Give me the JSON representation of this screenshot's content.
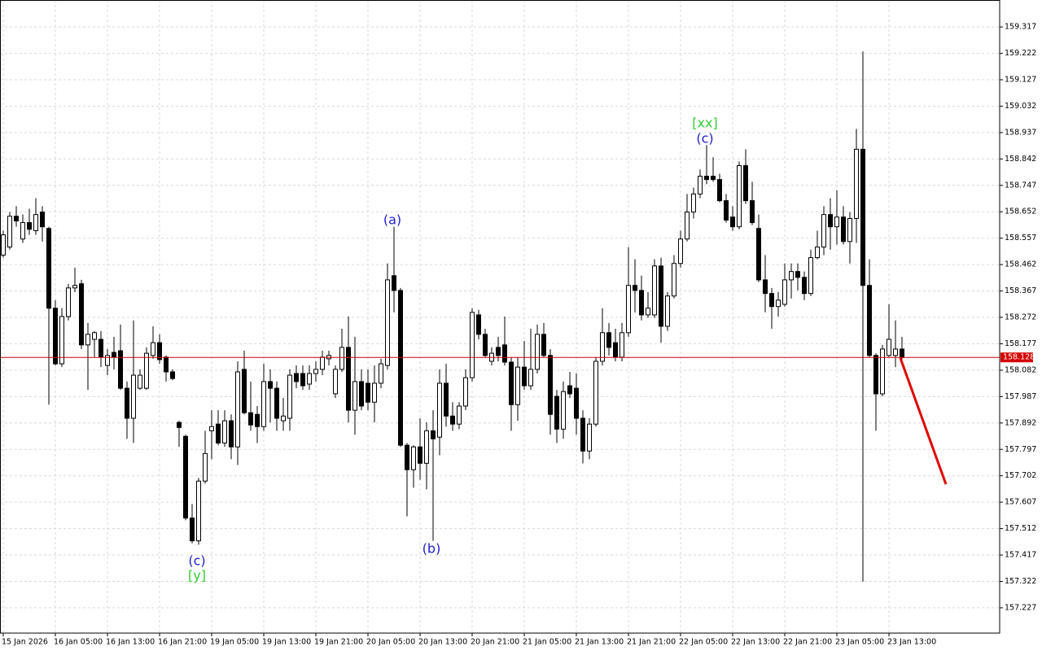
{
  "chart_data": {
    "type": "candlestick",
    "categories": [
      "15 Jan 2026",
      null,
      null,
      null,
      null,
      null,
      null,
      null,
      "16 Jan 05:00",
      null,
      null,
      null,
      null,
      null,
      null,
      null,
      "16 Jan 13:00",
      null,
      null,
      null,
      null,
      null,
      null,
      null,
      "16 Jan 21:00",
      null,
      null,
      null,
      null,
      null,
      null,
      null,
      "19 Jan 05:00",
      null,
      null,
      null,
      null,
      null,
      null,
      null,
      "19 Jan 13:00",
      null,
      null,
      null,
      null,
      null,
      null,
      null,
      "19 Jan 21:00",
      null,
      null,
      null,
      null,
      null,
      null,
      null,
      "20 Jan 05:00",
      null,
      null,
      null,
      null,
      null,
      null,
      null,
      "20 Jan 13:00",
      null,
      null,
      null,
      null,
      null,
      null,
      null,
      "20 Jan 21:00",
      null,
      null,
      null,
      null,
      null,
      null,
      null,
      "21 Jan 05:00",
      null,
      null,
      null,
      null,
      null,
      null,
      null,
      "21 Jan 13:00",
      null,
      null,
      null,
      null,
      null,
      null,
      null,
      "21 Jan 21:00",
      null,
      null,
      null,
      null,
      null,
      null,
      null,
      "22 Jan 05:00",
      null,
      null,
      null,
      null,
      null,
      null,
      null,
      "22 Jan 13:00",
      null,
      null,
      null,
      null,
      null,
      null,
      null,
      "22 Jan 21:00",
      null,
      null,
      null,
      null,
      null,
      null,
      null,
      "23 Jan 05:00",
      null,
      null,
      null,
      null,
      null,
      null,
      null,
      "23 Jan 13:00",
      null,
      null
    ],
    "open": [
      158.496,
      158.525,
      158.636,
      158.554,
      158.613,
      158.584,
      158.651,
      158.592,
      158.305,
      158.105,
      158.275,
      158.378,
      158.393,
      158.173,
      158.193,
      158.193,
      158.099,
      158.146,
      158.152,
      158.017,
      157.909,
      158.017,
      158.017,
      158.135,
      158.181,
      158.129,
      158.076,
      157.894,
      157.844,
      157.55,
      157.468,
      157.683,
      157.864,
      157.888,
      157.82,
      157.9,
      157.806,
      158.085,
      157.929,
      157.923,
      157.879,
      158.041,
      158.017,
      157.9,
      157.909,
      158.07,
      158.07,
      158.032,
      158.07,
      158.085,
      158.123,
      157.997,
      158.085,
      158.164,
      157.938,
      158.041,
      158.035,
      157.967,
      158.035,
      158.099,
      158.422,
      158.369,
      157.812,
      157.724,
      157.806,
      157.747,
      157.864,
      157.841,
      158.035,
      157.917,
      157.888,
      157.953,
      158.055,
      158.281,
      158.211,
      158.114,
      158.164,
      158.173,
      158.111,
      157.958,
      158.093,
      158.026,
      158.085,
      158.211,
      158.135,
      157.988,
      157.87,
      158.026,
      158.017,
      157.909,
      157.791,
      157.888,
      158.114,
      158.217,
      158.181,
      158.129,
      158.217,
      158.387,
      158.369,
      158.281,
      158.281,
      158.457,
      158.24,
      158.349,
      158.466,
      158.554,
      158.651,
      158.716,
      158.78,
      158.78,
      158.768,
      158.692,
      158.633,
      158.598,
      158.818,
      158.692,
      158.592,
      158.407,
      158.358,
      158.311,
      158.319,
      158.407,
      158.437,
      158.416,
      158.358,
      158.487,
      158.525,
      158.642,
      158.598,
      158.633,
      158.545,
      158.628,
      158.877,
      158.387,
      158.135,
      157.997,
      158.135,
      158.135,
      158.158
    ],
    "high": [
      158.584,
      158.651,
      158.672,
      158.642,
      158.663,
      158.701,
      158.672,
      158.598,
      158.334,
      158.305,
      158.393,
      158.451,
      158.407,
      158.252,
      158.223,
      158.223,
      158.158,
      158.202,
      158.246,
      158.041,
      158.261,
      158.085,
      158.164,
      158.24,
      158.211,
      158.135,
      158.085,
      157.9,
      157.85,
      157.6,
      157.694,
      157.864,
      157.938,
      157.938,
      157.938,
      157.923,
      158.114,
      158.152,
      158.041,
      157.953,
      158.105,
      158.085,
      158.041,
      157.982,
      158.085,
      158.099,
      158.099,
      158.099,
      158.114,
      158.152,
      158.152,
      158.099,
      158.231,
      158.275,
      158.202,
      158.085,
      158.085,
      158.099,
      158.123,
      158.466,
      158.598,
      158.378,
      157.82,
      157.812,
      157.909,
      157.894,
      157.938,
      158.085,
      158.105,
      157.967,
      157.967,
      158.085,
      158.305,
      158.299,
      158.231,
      158.164,
      158.202,
      158.275,
      158.129,
      158.129,
      158.187,
      158.231,
      158.246,
      158.252,
      158.158,
      158.011,
      158.041,
      158.076,
      158.07,
      157.938,
      157.909,
      158.129,
      158.305,
      158.252,
      158.231,
      158.252,
      158.525,
      158.481,
      158.422,
      158.363,
      158.481,
      158.487,
      158.363,
      158.496,
      158.584,
      158.716,
      158.739,
      158.804,
      158.892,
      158.848,
      158.789,
      158.716,
      158.672,
      158.833,
      158.877,
      158.76,
      158.642,
      158.496,
      158.378,
      158.363,
      158.466,
      158.466,
      158.466,
      158.437,
      158.516,
      158.584,
      158.672,
      158.701,
      158.73,
      158.672,
      158.651,
      158.95,
      159.229,
      158.481,
      158.143,
      158.173,
      158.319,
      158.261,
      158.202
    ],
    "low": [
      158.487,
      158.516,
      158.598,
      158.54,
      158.569,
      158.569,
      158.545,
      157.958,
      158.099,
      158.093,
      158.261,
      158.363,
      158.158,
      158.011,
      158.129,
      158.093,
      158.064,
      158.085,
      158.011,
      157.835,
      157.82,
      158.011,
      158.011,
      158.123,
      158.105,
      158.041,
      158.046,
      157.806,
      157.542,
      157.459,
      157.454,
      157.674,
      157.762,
      157.812,
      157.806,
      157.762,
      157.741,
      157.923,
      157.864,
      157.82,
      157.864,
      157.894,
      157.864,
      157.864,
      157.864,
      158.017,
      158.011,
      158.011,
      158.041,
      158.064,
      158.099,
      157.982,
      158.076,
      157.894,
      157.85,
      157.938,
      157.938,
      157.894,
      158.017,
      158.085,
      158.29,
      157.806,
      157.556,
      157.659,
      157.688,
      157.653,
      157.468,
      157.776,
      157.879,
      157.864,
      157.87,
      157.938,
      158.041,
      158.193,
      158.129,
      158.099,
      158.114,
      158.099,
      157.864,
      157.9,
      158.011,
      158.011,
      158.07,
      158.129,
      157.85,
      157.82,
      157.835,
      157.982,
      157.85,
      157.747,
      157.762,
      157.879,
      158.099,
      158.135,
      158.114,
      158.114,
      158.202,
      158.29,
      158.261,
      158.27,
      158.27,
      158.181,
      158.223,
      158.34,
      158.451,
      158.545,
      158.628,
      158.701,
      158.751,
      158.76,
      158.686,
      158.613,
      158.584,
      158.589,
      158.68,
      158.604,
      158.399,
      158.29,
      158.231,
      158.275,
      158.311,
      158.34,
      158.369,
      158.334,
      158.349,
      158.481,
      158.496,
      158.516,
      158.534,
      158.534,
      158.466,
      158.54,
      157.321,
      158.129,
      157.864,
      157.988,
      158.129,
      158.093,
      158.105
    ],
    "close": [
      158.569,
      158.636,
      158.619,
      158.613,
      158.589,
      158.642,
      158.598,
      158.305,
      158.105,
      158.275,
      158.378,
      158.387,
      158.173,
      158.211,
      158.217,
      158.129,
      158.135,
      158.129,
      158.017,
      157.909,
      158.064,
      158.064,
      158.143,
      158.181,
      158.12,
      158.076,
      158.052,
      157.876,
      157.55,
      157.468,
      157.683,
      157.782,
      157.879,
      157.82,
      157.9,
      157.806,
      158.076,
      157.929,
      157.885,
      157.879,
      158.041,
      158.017,
      157.909,
      157.917,
      158.064,
      158.041,
      158.026,
      158.07,
      158.085,
      158.129,
      158.135,
      158.085,
      158.164,
      157.938,
      158.041,
      157.953,
      157.967,
      158.035,
      158.105,
      158.407,
      158.369,
      157.812,
      157.724,
      157.806,
      157.747,
      157.864,
      157.835,
      158.035,
      157.917,
      157.888,
      157.953,
      158.055,
      158.29,
      158.211,
      158.135,
      158.143,
      158.135,
      158.111,
      157.958,
      158.093,
      158.026,
      158.085,
      158.211,
      158.135,
      157.923,
      157.87,
      158.005,
      157.997,
      157.909,
      157.791,
      157.888,
      158.114,
      158.217,
      158.164,
      158.129,
      158.217,
      158.387,
      158.369,
      158.281,
      158.305,
      158.457,
      158.24,
      158.349,
      158.466,
      158.554,
      158.651,
      158.716,
      158.78,
      158.768,
      158.768,
      158.692,
      158.622,
      158.598,
      158.818,
      158.692,
      158.613,
      158.407,
      158.358,
      158.311,
      158.334,
      158.407,
      158.437,
      158.416,
      158.358,
      158.487,
      158.525,
      158.642,
      158.598,
      158.633,
      158.545,
      158.628,
      158.877,
      158.387,
      158.135,
      157.997,
      158.158,
      158.193,
      158.158,
      158.128
    ],
    "up_color": "#ffffff",
    "down_color": "#000000",
    "ylim": [
      157.136,
      159.414
    ],
    "yticks": [
      157.227,
      157.322,
      157.417,
      157.512,
      157.607,
      157.702,
      157.797,
      157.892,
      157.987,
      158.082,
      158.177,
      158.272,
      158.367,
      158.462,
      158.557,
      158.652,
      158.747,
      158.842,
      158.937,
      159.032,
      159.127,
      159.222,
      159.317
    ],
    "grid": true,
    "last_price": 158.128,
    "last_price_color": "#d40000",
    "annotations": [
      {
        "text": "(a)",
        "color": "#2020d0"
      },
      {
        "text": "(b)",
        "color": "#2020d0"
      },
      {
        "text": "(c)",
        "color": "#2020d0"
      },
      {
        "text": "[y]",
        "color": "#33cc33"
      },
      {
        "text": "(c)",
        "color": "#2020d0"
      },
      {
        "text": "[xx]",
        "color": "#33cc33"
      }
    ]
  }
}
